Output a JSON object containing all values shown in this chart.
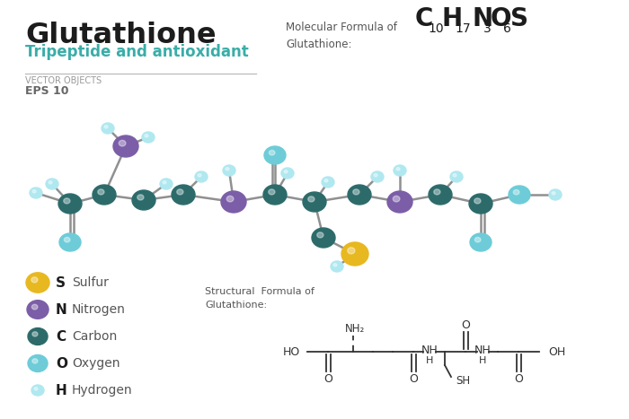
{
  "title": "Glutathione",
  "subtitle": "Tripeptide and antioxidant",
  "label1": "VECTOR OBJECTS",
  "label2": "EPS 10",
  "mol_formula_label": "Molecular Formula of\nGlutathione:",
  "bg_color": "#ffffff",
  "teal_text": "#3aada8",
  "purple": "#7b5ea7",
  "light_blue": "#6dccd8",
  "pale_blue": "#b0e8f0",
  "yellow": "#e8b820",
  "dark_teal": "#2d6b6b",
  "bond_color": "#909090",
  "struct_line_color": "#333333",
  "struct_formula_label": "Structural  Formula of\nGlutathione:",
  "legend_symbols": [
    "S",
    "N",
    "C",
    "O",
    "H"
  ],
  "legend_labels": [
    "Sulfur",
    "Nitrogen",
    "Carbon",
    "Oxygen",
    "Hydrogen"
  ],
  "legend_colors": [
    "#e8b820",
    "#7b5ea7",
    "#2d6b6b",
    "#6dccd8",
    "#b0e8f0"
  ],
  "legend_radii": [
    13,
    12,
    11,
    11,
    7
  ]
}
